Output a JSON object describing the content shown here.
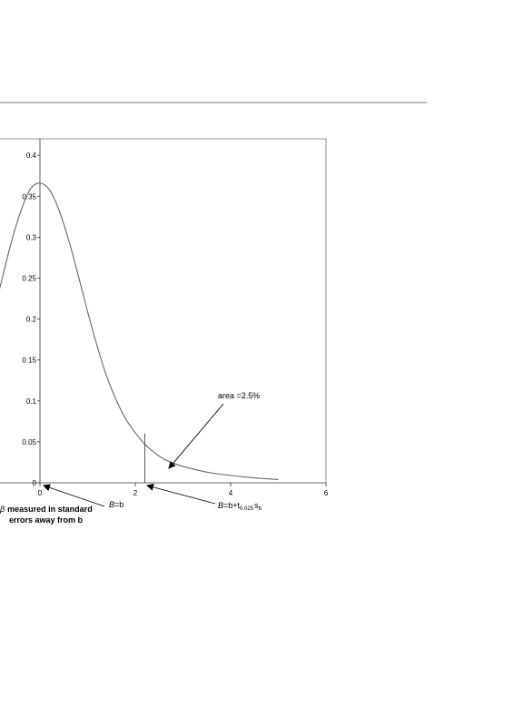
{
  "chart_data": {
    "type": "line",
    "title": "",
    "xlabel": "",
    "ylabel": "",
    "xlim": [
      -0.85,
      6
    ],
    "ylim": [
      0,
      0.42
    ],
    "x_ticks": [
      "0",
      "2",
      "4",
      "6"
    ],
    "y_ticks": [
      "0",
      "0.05",
      "0.1",
      "0.15",
      "0.2",
      "0.25",
      "0.3",
      "0.35",
      "0.4"
    ],
    "grid": false,
    "series": [
      {
        "x": [
          -0.85,
          -0.6,
          -0.4,
          -0.2,
          0,
          0.2,
          0.4,
          0.6,
          0.8,
          1.0,
          1.2,
          1.4,
          1.6,
          1.8,
          2.0,
          2.2,
          2.4,
          2.6,
          2.8,
          3.0,
          3.5,
          4.0,
          4.5,
          5.0
        ],
        "y": [
          0.236,
          0.294,
          0.332,
          0.359,
          0.366,
          0.358,
          0.333,
          0.297,
          0.254,
          0.209,
          0.167,
          0.13,
          0.101,
          0.078,
          0.061,
          0.047,
          0.037,
          0.029,
          0.024,
          0.02,
          0.013,
          0.009,
          0.006,
          0.004
        ]
      }
    ],
    "critical_line_x": 2.2,
    "critical_line_height": 0.06,
    "annotations": {
      "area": "area =2.5%",
      "b_equals": "=b",
      "b_italic": "B",
      "b_crit_prefix": "=b+t",
      "b_crit_sub": "0.025",
      "b_crit_s": "s",
      "b_crit_s_sub": "b",
      "axis_note_symbol": "β",
      "axis_note_line1": "measured in standard",
      "axis_note_line2": "errors away from b"
    }
  }
}
